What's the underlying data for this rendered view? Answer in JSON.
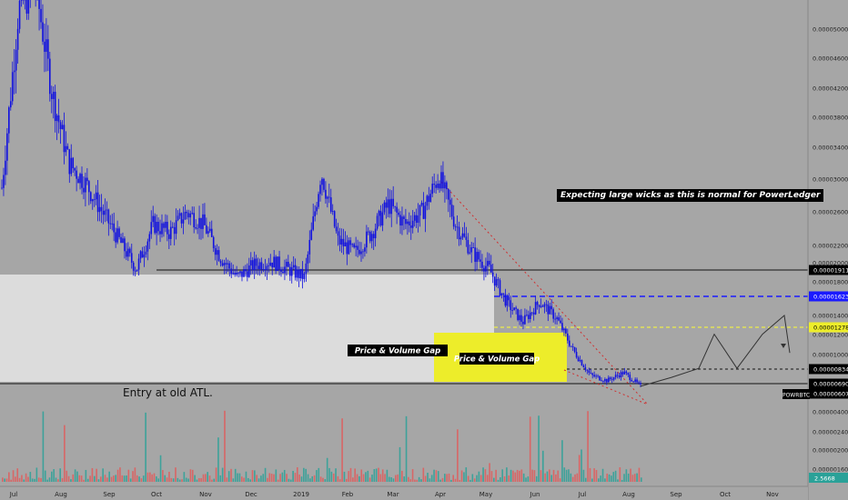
{
  "chart_data": {
    "type": "candlestick",
    "symbol": "POWRBTC",
    "x_labels": [
      "Jul",
      "Aug",
      "Sep",
      "Oct",
      "Nov",
      "Dec",
      "2019",
      "Feb",
      "Mar",
      "Apr",
      "May",
      "Jun",
      "Jul",
      "Aug",
      "Sep",
      "Oct",
      "Nov"
    ],
    "y_ticks": [
      "0.00005000",
      "0.00004600",
      "0.00004200",
      "0.00003800",
      "0.00003400",
      "0.00003000",
      "0.00002600",
      "0.00002200",
      "0.00002000",
      "0.00001800",
      "0.00001400",
      "0.00001200",
      "0.00001000"
    ],
    "volume_ticks": [
      "0.00000400",
      "0.00000240",
      "0.00000200",
      "0.00000160"
    ],
    "volume_last": "2.5668",
    "price_tags": [
      {
        "label": "0.00001911",
        "style": "black"
      },
      {
        "label": "0.00001623",
        "style": "blue"
      },
      {
        "label": "0.00001278",
        "style": "yellow"
      },
      {
        "label": "0.00000834",
        "style": "black"
      },
      {
        "label": "0.00000690",
        "style": "black"
      },
      {
        "label": "0.00000607",
        "style": "black"
      }
    ],
    "price_series": [
      3.05e-05,
      5.25e-05,
      5.55e-05,
      4.2e-05,
      3.35e-05,
      3.1e-05,
      2.75e-05,
      2.4e-05,
      2.05e-05,
      2.6e-05,
      2.5e-05,
      2.75e-05,
      2.6e-05,
      2.2e-05,
      1.95e-05,
      2.1e-05,
      2.15e-05,
      2.05e-05,
      1.95e-05,
      3.25e-05,
      2.4e-05,
      2.25e-05,
      2.5e-05,
      2.85e-05,
      2.6e-05,
      2.75e-05,
      3.2e-05,
      2.6e-05,
      2.25e-05,
      2.05e-05,
      1.65e-05,
      1.4e-05,
      1.65e-05,
      1.45e-05,
      1.05e-05,
      7.5e-06,
      6.8e-06,
      7.8e-06,
      6.1e-06
    ],
    "projection": [
      6.1e-06,
      7.2e-06,
      8.3e-06,
      1.25e-05,
      8.3e-06,
      1.25e-05,
      1.48e-05,
      1.02e-05
    ]
  },
  "zones": {
    "gap_label_1": "Price & Volume Gap",
    "gap_label_2": "Price & Volume Gap",
    "entry_label": "Entry at old ATL."
  },
  "annotations": {
    "wicks_note": "Expecting large wicks as this is normal for PowerLedger"
  },
  "colors": {
    "background": "#a6a6a6",
    "candles": "#1010e0",
    "volume_up": "#2aa198",
    "volume_down": "#e05a5a",
    "gap_zone_white": "#dcdcdc",
    "gap_zone_yellow": "#eded2a",
    "trend_line": "#d03030"
  }
}
